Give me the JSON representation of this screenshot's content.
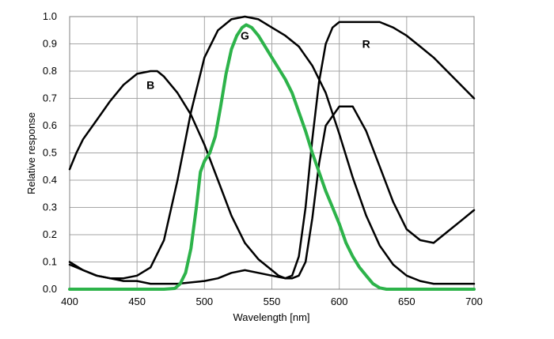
{
  "chart_data": {
    "type": "line",
    "title": "",
    "xlabel": "Wavelength [nm]",
    "ylabel": "Relative response",
    "xlim": [
      400,
      700
    ],
    "ylim": [
      0,
      1.0
    ],
    "x_ticks": [
      400,
      450,
      500,
      550,
      600,
      650,
      700
    ],
    "y_ticks": [
      0.0,
      0.1,
      0.2,
      0.3,
      0.4,
      0.5,
      0.6,
      0.7,
      0.8,
      0.9,
      1.0
    ],
    "x_tick_labels": [
      "400",
      "450",
      "500",
      "550",
      "600",
      "650",
      "700"
    ],
    "y_tick_labels": [
      "0.0",
      "0.1",
      "0.2",
      "0.3",
      "0.4",
      "0.5",
      "0.6",
      "0.7",
      "0.8",
      "0.9",
      "1.0"
    ],
    "grid": true,
    "series": [
      {
        "name": "B",
        "color": "#000000",
        "label_at": [
          460,
          0.75
        ],
        "points": [
          [
            400,
            0.44
          ],
          [
            405,
            0.5
          ],
          [
            410,
            0.55
          ],
          [
            420,
            0.62
          ],
          [
            430,
            0.69
          ],
          [
            440,
            0.75
          ],
          [
            450,
            0.79
          ],
          [
            460,
            0.8
          ],
          [
            465,
            0.8
          ],
          [
            470,
            0.78
          ],
          [
            480,
            0.72
          ],
          [
            490,
            0.64
          ],
          [
            500,
            0.53
          ],
          [
            510,
            0.4
          ],
          [
            520,
            0.27
          ],
          [
            530,
            0.17
          ],
          [
            540,
            0.11
          ],
          [
            550,
            0.07
          ],
          [
            555,
            0.05
          ],
          [
            560,
            0.04
          ],
          [
            565,
            0.04
          ],
          [
            570,
            0.05
          ],
          [
            575,
            0.1
          ],
          [
            580,
            0.26
          ],
          [
            585,
            0.46
          ],
          [
            590,
            0.6
          ],
          [
            600,
            0.67
          ],
          [
            610,
            0.67
          ],
          [
            620,
            0.58
          ],
          [
            630,
            0.45
          ],
          [
            640,
            0.32
          ],
          [
            650,
            0.22
          ],
          [
            660,
            0.18
          ],
          [
            670,
            0.17
          ],
          [
            680,
            0.21
          ],
          [
            690,
            0.25
          ],
          [
            700,
            0.29
          ]
        ]
      },
      {
        "name": "G",
        "color": "#000000",
        "label_at": [
          530,
          0.93
        ],
        "points": [
          [
            400,
            0.09
          ],
          [
            410,
            0.07
          ],
          [
            420,
            0.05
          ],
          [
            430,
            0.04
          ],
          [
            440,
            0.04
          ],
          [
            450,
            0.05
          ],
          [
            460,
            0.08
          ],
          [
            470,
            0.18
          ],
          [
            480,
            0.4
          ],
          [
            490,
            0.65
          ],
          [
            500,
            0.85
          ],
          [
            510,
            0.95
          ],
          [
            520,
            0.99
          ],
          [
            530,
            1.0
          ],
          [
            540,
            0.99
          ],
          [
            550,
            0.96
          ],
          [
            560,
            0.93
          ],
          [
            570,
            0.89
          ],
          [
            580,
            0.82
          ],
          [
            590,
            0.72
          ],
          [
            600,
            0.57
          ],
          [
            610,
            0.41
          ],
          [
            620,
            0.27
          ],
          [
            630,
            0.16
          ],
          [
            640,
            0.09
          ],
          [
            650,
            0.05
          ],
          [
            660,
            0.03
          ],
          [
            670,
            0.02
          ],
          [
            680,
            0.02
          ],
          [
            690,
            0.02
          ],
          [
            700,
            0.02
          ]
        ]
      },
      {
        "name": "R",
        "color": "#000000",
        "label_at": [
          620,
          0.9
        ],
        "points": [
          [
            400,
            0.1
          ],
          [
            410,
            0.07
          ],
          [
            420,
            0.05
          ],
          [
            430,
            0.04
          ],
          [
            440,
            0.03
          ],
          [
            450,
            0.03
          ],
          [
            460,
            0.02
          ],
          [
            470,
            0.02
          ],
          [
            480,
            0.02
          ],
          [
            490,
            0.025
          ],
          [
            500,
            0.03
          ],
          [
            510,
            0.04
          ],
          [
            520,
            0.06
          ],
          [
            530,
            0.07
          ],
          [
            540,
            0.06
          ],
          [
            550,
            0.05
          ],
          [
            555,
            0.045
          ],
          [
            560,
            0.04
          ],
          [
            565,
            0.05
          ],
          [
            570,
            0.12
          ],
          [
            575,
            0.3
          ],
          [
            580,
            0.55
          ],
          [
            585,
            0.76
          ],
          [
            590,
            0.9
          ],
          [
            595,
            0.96
          ],
          [
            600,
            0.98
          ],
          [
            610,
            0.98
          ],
          [
            620,
            0.98
          ],
          [
            630,
            0.98
          ],
          [
            640,
            0.96
          ],
          [
            650,
            0.93
          ],
          [
            660,
            0.89
          ],
          [
            670,
            0.85
          ],
          [
            680,
            0.8
          ],
          [
            690,
            0.75
          ],
          [
            700,
            0.7
          ]
        ]
      },
      {
        "name": "G (green)",
        "color": "#2db34a",
        "points": [
          [
            400,
            0.0
          ],
          [
            440,
            0.0
          ],
          [
            460,
            0.0
          ],
          [
            470,
            0.0
          ],
          [
            478,
            0.003
          ],
          [
            482,
            0.02
          ],
          [
            486,
            0.06
          ],
          [
            490,
            0.15
          ],
          [
            494,
            0.3
          ],
          [
            497,
            0.43
          ],
          [
            500,
            0.47
          ],
          [
            504,
            0.5
          ],
          [
            508,
            0.56
          ],
          [
            512,
            0.67
          ],
          [
            516,
            0.79
          ],
          [
            520,
            0.88
          ],
          [
            524,
            0.93
          ],
          [
            528,
            0.96
          ],
          [
            531,
            0.97
          ],
          [
            535,
            0.96
          ],
          [
            540,
            0.93
          ],
          [
            545,
            0.89
          ],
          [
            550,
            0.85
          ],
          [
            555,
            0.81
          ],
          [
            560,
            0.77
          ],
          [
            565,
            0.72
          ],
          [
            570,
            0.65
          ],
          [
            575,
            0.58
          ],
          [
            580,
            0.5
          ],
          [
            585,
            0.43
          ],
          [
            590,
            0.36
          ],
          [
            595,
            0.3
          ],
          [
            600,
            0.24
          ],
          [
            605,
            0.17
          ],
          [
            610,
            0.12
          ],
          [
            615,
            0.08
          ],
          [
            620,
            0.05
          ],
          [
            625,
            0.02
          ],
          [
            630,
            0.005
          ],
          [
            635,
            0.0
          ],
          [
            650,
            0.0
          ],
          [
            700,
            0.0
          ]
        ]
      }
    ]
  }
}
